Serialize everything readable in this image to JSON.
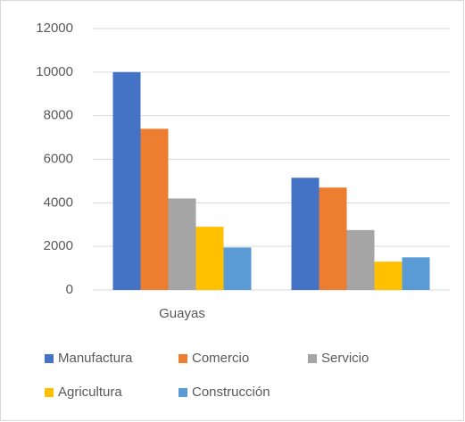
{
  "chart_data": {
    "type": "bar",
    "categories": [
      "Guayas",
      null
    ],
    "series": [
      {
        "name": "Manufactura",
        "color": "#4472c4",
        "values": [
          10000,
          5150
        ]
      },
      {
        "name": "Comercio",
        "color": "#ed7d31",
        "values": [
          7400,
          4700
        ]
      },
      {
        "name": "Servicio",
        "color": "#a5a5a5",
        "values": [
          4200,
          2750
        ]
      },
      {
        "name": "Agricultura",
        "color": "#ffc000",
        "values": [
          2900,
          1300
        ]
      },
      {
        "name": "Construcción",
        "color": "#5b9bd5",
        "values": [
          1950,
          1500
        ]
      }
    ],
    "ylim": [
      0,
      12000
    ],
    "yticks": [
      0,
      2000,
      4000,
      6000,
      8000,
      10000,
      12000
    ],
    "grid": true
  }
}
